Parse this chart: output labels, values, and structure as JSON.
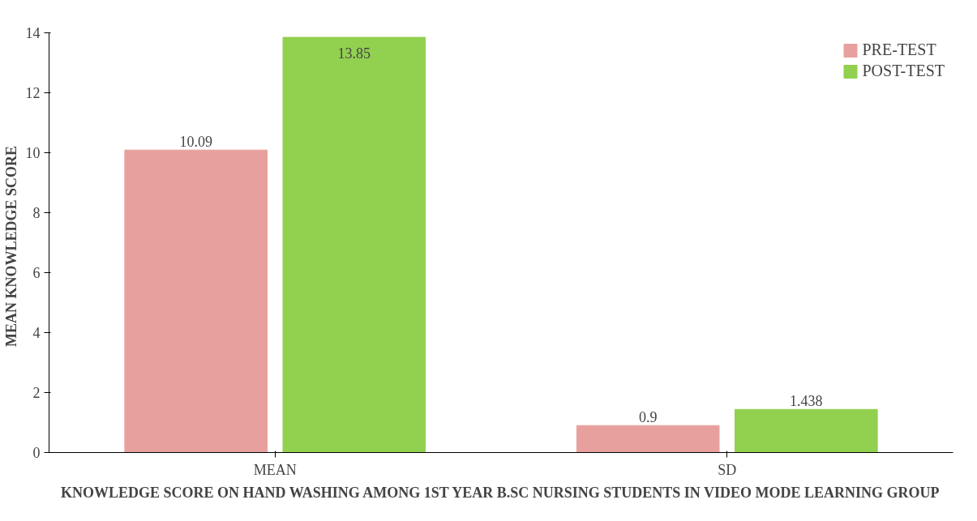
{
  "chart_data": {
    "type": "bar",
    "categories": [
      "MEAN",
      "SD"
    ],
    "series": [
      {
        "name": "PRE-TEST",
        "color": "#e8a09e",
        "values": [
          10.09,
          0.9
        ]
      },
      {
        "name": "POST-TEST",
        "color": "#92d050",
        "values": [
          13.85,
          1.438
        ]
      }
    ],
    "ylabel": "MEAN  KNOWLEDGE  SCORE",
    "xlabel": "KNOWLEDGE SCORE ON HAND WASHING AMONG 1ST YEAR B.SC NURSING STUDENTS IN VIDEO MODE LEARNING GROUP",
    "ylim": [
      0,
      14
    ],
    "yticks": [
      0,
      2,
      4,
      6,
      8,
      10,
      12,
      14
    ],
    "data_labels": true,
    "legend": "top right",
    "grid": false
  }
}
